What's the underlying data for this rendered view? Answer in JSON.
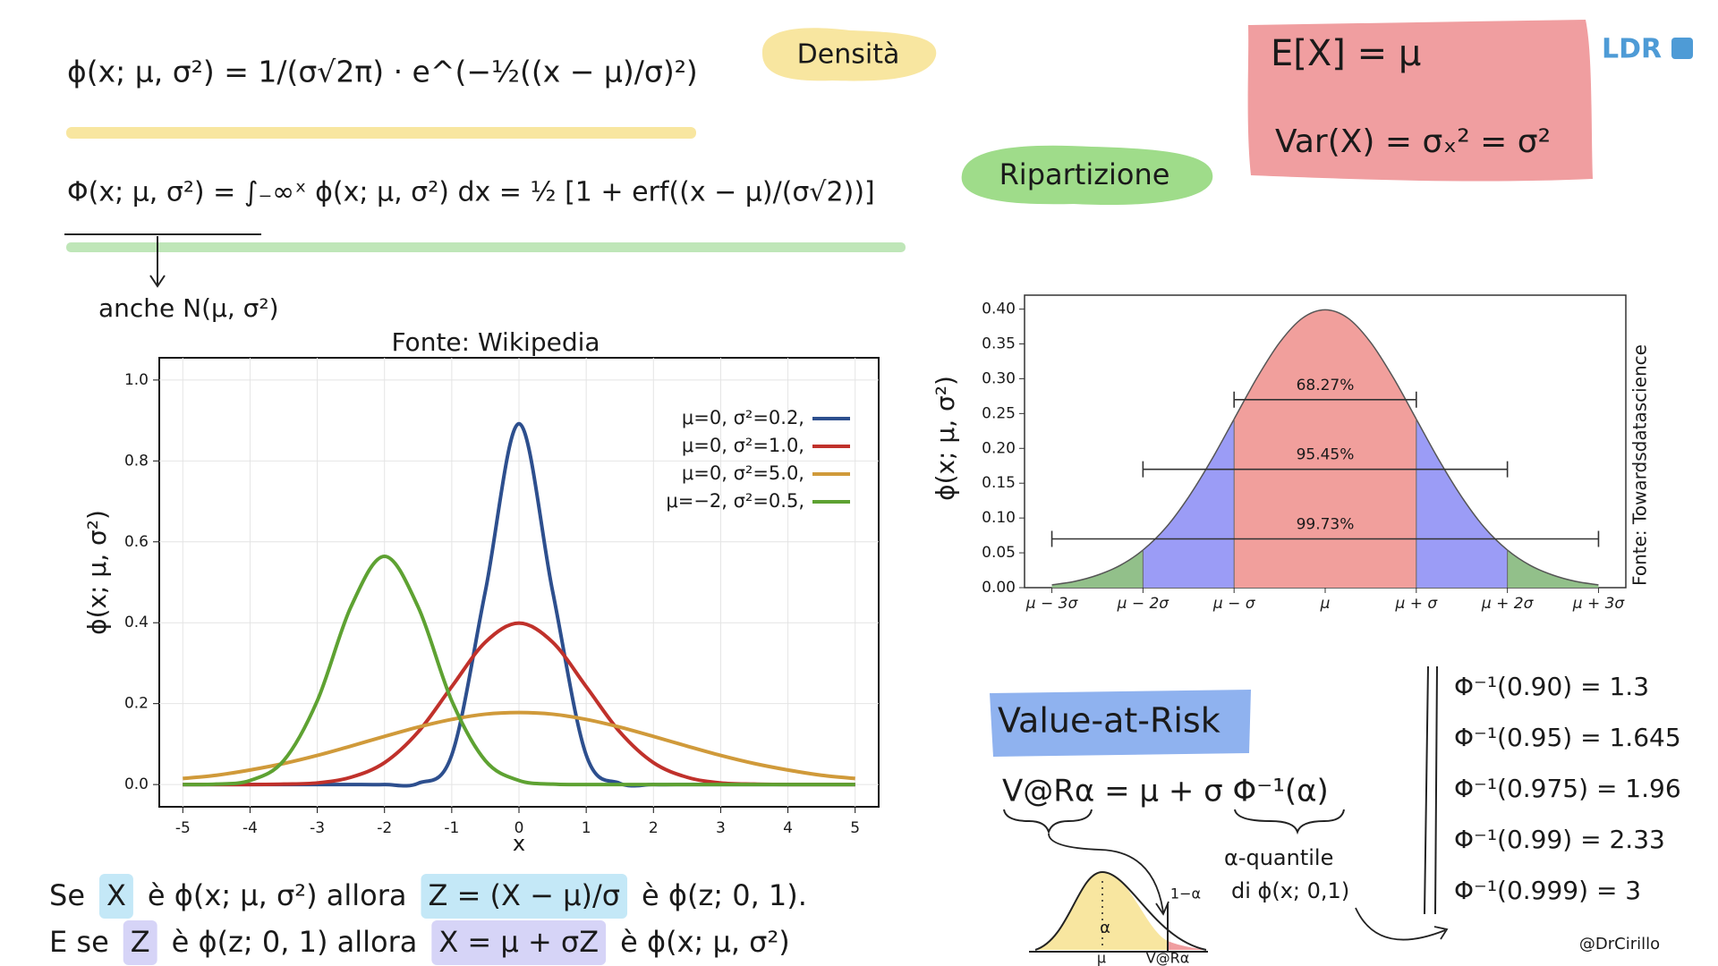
{
  "header": {
    "density_formula": "ϕ(x; μ, σ²) = 1/(σ√2π) · e^(−½((x − μ)/σ)²)",
    "density_tag": "Densità",
    "cdf_formula": "Φ(x; μ, σ²) = ∫₋∞ˣ ϕ(x; μ, σ²) dx = ½ [1 + erf((x − μ)/(σ√2))]",
    "cdf_tag": "Ripartizione",
    "alias": "anche N(μ, σ²)",
    "mean": "E[X] = μ",
    "variance": "Var(X) = σₓ² = σ²",
    "logo": "LDR"
  },
  "chart_data": [
    {
      "type": "line",
      "title": "Fonte: Wikipedia",
      "x_label": "x",
      "y_label": "ϕ(x; μ, σ²)",
      "x": [
        -5,
        -4.5,
        -4,
        -3.5,
        -3,
        -2.5,
        -2,
        -1.5,
        -1,
        -0.5,
        0,
        0.5,
        1,
        1.5,
        2,
        2.5,
        3,
        3.5,
        4,
        4.5,
        5
      ],
      "series": [
        {
          "name": "μ=0,   σ²=0.2,",
          "color": "#2d4f8e",
          "values": [
            0,
            0,
            0,
            0,
            0,
            0,
            0,
            0.003,
            0.073,
            0.478,
            0.892,
            0.478,
            0.073,
            0.003,
            0,
            0,
            0,
            0,
            0,
            0,
            0
          ]
        },
        {
          "name": "μ=0,   σ²=1.0,",
          "color": "#c0312b",
          "values": [
            0,
            0,
            0,
            0.001,
            0.004,
            0.018,
            0.054,
            0.13,
            0.242,
            0.352,
            0.399,
            0.352,
            0.242,
            0.13,
            0.054,
            0.018,
            0.004,
            0.001,
            0,
            0,
            0
          ]
        },
        {
          "name": "μ=0,   σ²=5.0,",
          "color": "#d09a3a",
          "values": [
            0.015,
            0.023,
            0.036,
            0.052,
            0.072,
            0.095,
            0.119,
            0.142,
            0.161,
            0.174,
            0.178,
            0.174,
            0.161,
            0.142,
            0.119,
            0.095,
            0.072,
            0.052,
            0.036,
            0.023,
            0.015
          ]
        },
        {
          "name": "μ=−2, σ²=0.5,",
          "color": "#5ea232",
          "values": [
            0,
            0.001,
            0.01,
            0.059,
            0.207,
            0.439,
            0.564,
            0.439,
            0.207,
            0.059,
            0.01,
            0.001,
            0,
            0,
            0,
            0,
            0,
            0,
            0,
            0,
            0
          ]
        }
      ],
      "xlim": [
        -5.35,
        5.35
      ],
      "ylim": [
        -0.055,
        1.055
      ],
      "xticks": [
        -5,
        -4,
        -3,
        -2,
        -1,
        0,
        1,
        2,
        3,
        4,
        5
      ],
      "yticks": [
        {
          "value": 0,
          "label": "0.0"
        },
        {
          "value": 0.2,
          "label": "0.2"
        },
        {
          "value": 0.4,
          "label": "0.4"
        },
        {
          "value": 0.6,
          "label": "0.6"
        },
        {
          "value": 0.8,
          "label": "0.8"
        },
        {
          "value": 1,
          "label": "1.0"
        }
      ],
      "grid": true,
      "legend": "upper-right"
    },
    {
      "type": "area",
      "y_label": "ϕ(x; μ, σ²)",
      "source": "Fonte: Towardsdatascience",
      "x": [
        -3,
        -2.75,
        -2.5,
        -2.25,
        -2,
        -1.75,
        -1.5,
        -1.25,
        -1,
        -0.75,
        -0.5,
        -0.25,
        0,
        0.25,
        0.5,
        0.75,
        1,
        1.25,
        1.5,
        1.75,
        2,
        2.25,
        2.5,
        2.75,
        3
      ],
      "values": [
        0.004,
        0.009,
        0.018,
        0.032,
        0.054,
        0.086,
        0.13,
        0.183,
        0.242,
        0.301,
        0.352,
        0.387,
        0.399,
        0.387,
        0.352,
        0.301,
        0.242,
        0.183,
        0.13,
        0.086,
        0.054,
        0.032,
        0.018,
        0.009,
        0.004
      ],
      "color": "#555555",
      "regions": [
        {
          "from": -3,
          "to": -2,
          "color": "#92c08a"
        },
        {
          "from": -2,
          "to": -1,
          "color": "#9b9cf6"
        },
        {
          "from": -1,
          "to": 1,
          "color": "#f19f9c"
        },
        {
          "from": 1,
          "to": 2,
          "color": "#9b9cf6"
        },
        {
          "from": 2,
          "to": 3,
          "color": "#92c08a"
        }
      ],
      "intervals": [
        {
          "label": "68.27%",
          "from": -1,
          "to": 1,
          "y": 0.27
        },
        {
          "label": "95.45%",
          "from": -2,
          "to": 2,
          "y": 0.17
        },
        {
          "label": "99.73%",
          "from": -3,
          "to": 3,
          "y": 0.07
        }
      ],
      "xlim": [
        -3.3,
        3.3
      ],
      "ylim": [
        0,
        0.42
      ],
      "xticks": [
        {
          "value": -3,
          "label": "μ − 3σ"
        },
        {
          "value": -2,
          "label": "μ − 2σ"
        },
        {
          "value": -1,
          "label": "μ − σ"
        },
        {
          "value": 0,
          "label": "μ"
        },
        {
          "value": 1,
          "label": "μ + σ"
        },
        {
          "value": 2,
          "label": "μ + 2σ"
        },
        {
          "value": 3,
          "label": "μ + 3σ"
        }
      ],
      "yticks": [
        {
          "value": 0,
          "label": "0.00"
        },
        {
          "value": 0.05,
          "label": "0.05"
        },
        {
          "value": 0.1,
          "label": "0.10"
        },
        {
          "value": 0.15,
          "label": "0.15"
        },
        {
          "value": 0.2,
          "label": "0.20"
        },
        {
          "value": 0.25,
          "label": "0.25"
        },
        {
          "value": 0.3,
          "label": "0.30"
        },
        {
          "value": 0.35,
          "label": "0.35"
        },
        {
          "value": 0.4,
          "label": "0.40"
        }
      ]
    }
  ],
  "var": {
    "title": "Value-at-Risk",
    "formula": "V@Rα = μ + σ Φ⁻¹(α)",
    "note": [
      "α-quantile",
      "di ϕ(x; 0,1)"
    ],
    "sketch_labels": [
      "α",
      "1−α",
      "μ",
      "V@Rα"
    ],
    "quantiles": [
      "Φ⁻¹(0.90) = 1.3",
      "Φ⁻¹(0.95) = 1.645",
      "Φ⁻¹(0.975) = 1.96",
      "Φ⁻¹(0.99) = 2.33",
      "Φ⁻¹(0.999) = 3"
    ]
  },
  "statements": [
    {
      "parts": [
        {
          "text": "Se"
        },
        {
          "text": "X",
          "highlight": "#c4e8f7"
        },
        {
          "text": "è ϕ(x; μ, σ²) allora"
        },
        {
          "text": "Z = (X − μ)/σ",
          "highlight": "#c4e8f7"
        },
        {
          "text": "è ϕ(z; 0, 1)."
        }
      ]
    },
    {
      "parts": [
        {
          "text": "E se"
        },
        {
          "text": "Z",
          "highlight": "#d6d4f7"
        },
        {
          "text": "è ϕ(z; 0, 1) allora"
        },
        {
          "text": "X = μ + σZ",
          "highlight": "#d6d4f7"
        },
        {
          "text": "è ϕ(x; μ, σ²)"
        }
      ]
    }
  ],
  "signature": "@DrCirillo"
}
